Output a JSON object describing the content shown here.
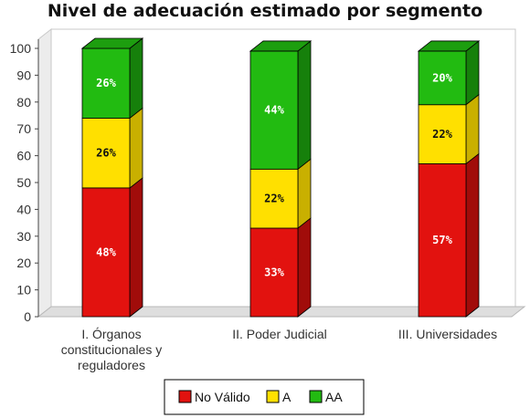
{
  "chart_data": {
    "type": "bar",
    "stacked": true,
    "title": "Nivel de adecuación estimado por segmento",
    "categories": [
      [
        "I. Órganos",
        "constitucionales y",
        "reguladores"
      ],
      [
        "II. Poder Judicial"
      ],
      [
        "III. Universidades"
      ]
    ],
    "series": [
      {
        "name": "No Válido",
        "values": [
          48,
          33,
          57
        ],
        "labels": [
          "48%",
          "33%",
          "57%"
        ],
        "color": "#e2120f",
        "side": "#a10c0a",
        "top": "#c4100d",
        "text_color": "#ffffff"
      },
      {
        "name": "A",
        "values": [
          26,
          22,
          22
        ],
        "labels": [
          "26%",
          "22%",
          "22%"
        ],
        "color": "#ffe000",
        "side": "#c9b000",
        "top": "#e0c800",
        "text_color": "#111111"
      },
      {
        "name": "AA",
        "values": [
          26,
          44,
          20
        ],
        "labels": [
          "26%",
          "44%",
          "20%"
        ],
        "color": "#22bb11",
        "side": "#16800b",
        "top": "#1d9e0f",
        "text_color": "#ffffff"
      }
    ],
    "ylim": [
      0,
      100
    ],
    "yticks": [
      "0",
      "10",
      "20",
      "30",
      "40",
      "50",
      "60",
      "70",
      "80",
      "90",
      "100"
    ],
    "legend_position": "bottom",
    "grid": false
  }
}
